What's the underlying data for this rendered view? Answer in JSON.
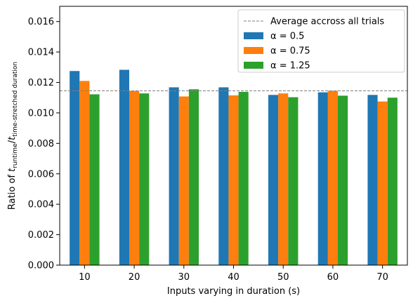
{
  "chart_data": {
    "type": "bar",
    "categories": [
      "10",
      "20",
      "30",
      "40",
      "50",
      "60",
      "70"
    ],
    "series": [
      {
        "name": "α = 0.5",
        "color": "#1f77b4",
        "values": [
          0.01275,
          0.01283,
          0.01168,
          0.01168,
          0.01118,
          0.01135,
          0.01118
        ]
      },
      {
        "name": "α = 0.75",
        "color": "#ff7f0e",
        "values": [
          0.0121,
          0.01145,
          0.01108,
          0.01115,
          0.01128,
          0.01145,
          0.01075
        ]
      },
      {
        "name": "α = 1.25",
        "color": "#2ca02c",
        "values": [
          0.01122,
          0.01128,
          0.01155,
          0.01138,
          0.01103,
          0.01113,
          0.011
        ]
      }
    ],
    "reference_line": {
      "label": "Average accross all trials",
      "value": 0.01145,
      "color": "#808080",
      "style": "dashed"
    },
    "xlabel": "Inputs varying in duration (s)",
    "ylabel": {
      "prefix": "Ratio of ",
      "t": "t",
      "sub1": "runtime",
      "slash": "/",
      "sub2": "time-stretched duration"
    },
    "ylim": [
      0,
      0.017
    ],
    "yticks": [
      "0.000",
      "0.002",
      "0.004",
      "0.006",
      "0.008",
      "0.010",
      "0.012",
      "0.014",
      "0.016"
    ],
    "ytick_values": [
      0,
      0.002,
      0.004,
      0.006,
      0.008,
      0.01,
      0.012,
      0.014,
      0.016
    ],
    "grid": false,
    "legend_position": "top-right"
  }
}
